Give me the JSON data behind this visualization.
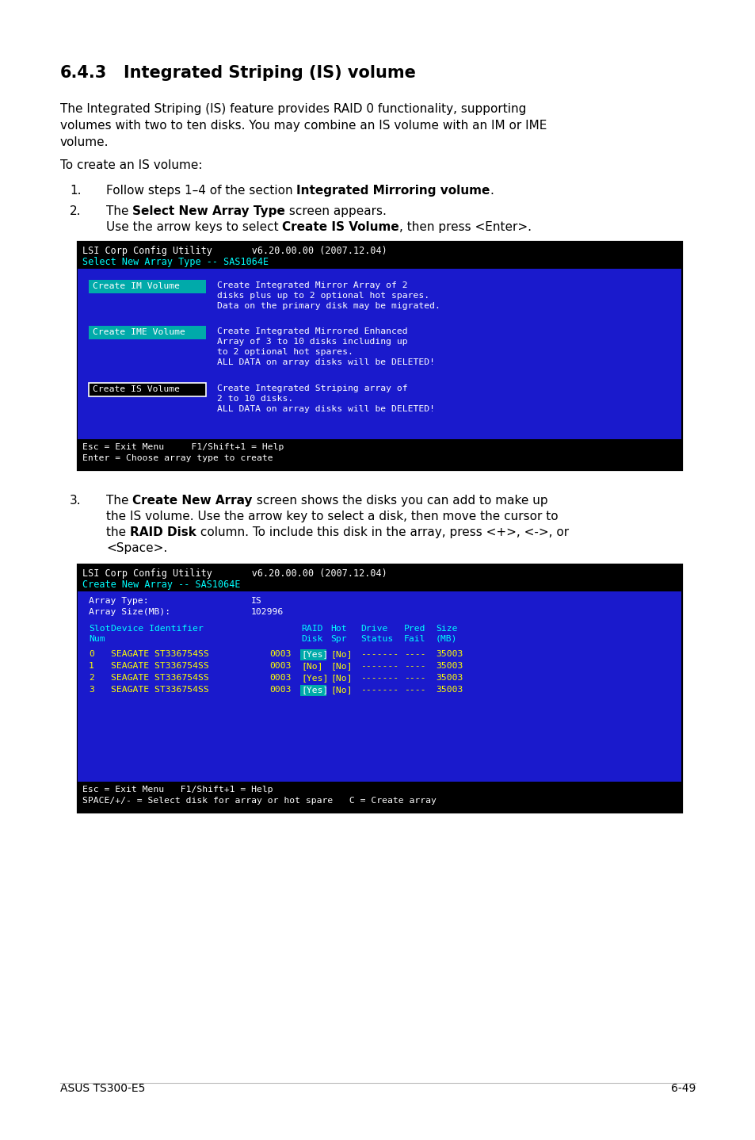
{
  "page_bg": "#ffffff",
  "footer_left": "ASUS TS300-E5",
  "footer_right": "6-49",
  "screen1": {
    "body_bg": "#1a1acc",
    "header_line1": "LSI Corp Config Utility       v6.20.00.00 (2007.12.04)",
    "header_line2": "Select New Array Type -- SAS1064E",
    "header_line2_color": "#00ffff",
    "btn1_text": "Create IM Volume",
    "btn1_desc_lines": [
      "Create Integrated Mirror Array of 2",
      "disks plus up to 2 optional hot spares.",
      "Data on the primary disk may be migrated."
    ],
    "btn2_text": "Create IME Volume",
    "btn2_desc_lines": [
      "Create Integrated Mirrored Enhanced",
      "Array of 3 to 10 disks including up",
      "to 2 optional hot spares.",
      "ALL DATA on array disks will be DELETED!"
    ],
    "btn3_text": "Create IS Volume",
    "btn3_desc_lines": [
      "Create Integrated Striping array of",
      "2 to 10 disks.",
      "ALL DATA on array disks will be DELETED!"
    ],
    "footer_line1": "Esc = Exit Menu     F1/Shift+1 = Help",
    "footer_line2": "Enter = Choose array type to create"
  },
  "screen2": {
    "body_bg": "#1a1acc",
    "header_line1": "LSI Corp Config Utility       v6.20.00.00 (2007.12.04)",
    "header_line2": "Create New Array -- SAS1064E",
    "header_line2_color": "#00ffff",
    "array_type_label": "Array Type:",
    "array_type_value": "IS",
    "array_size_label": "Array Size(MB):",
    "array_size_value": "102996",
    "col_headers_color": "#00ffff",
    "rows": [
      {
        "slot": "0",
        "device": "SEAGATE ST336754SS",
        "num": "0003",
        "raid": "Yes",
        "raid_hl": true,
        "hot": "No",
        "drive": "-------",
        "pred": "----",
        "size": "35003"
      },
      {
        "slot": "1",
        "device": "SEAGATE ST336754SS",
        "num": "0003",
        "raid": "No",
        "raid_hl": false,
        "hot": "No",
        "drive": "-------",
        "pred": "----",
        "size": "35003"
      },
      {
        "slot": "2",
        "device": "SEAGATE ST336754SS",
        "num": "0003",
        "raid": "Yes",
        "raid_hl": false,
        "hot": "No",
        "drive": "-------",
        "pred": "----",
        "size": "35003"
      },
      {
        "slot": "3",
        "device": "SEAGATE ST336754SS",
        "num": "0003",
        "raid": "Yes",
        "raid_hl": true,
        "hot": "No",
        "drive": "-------",
        "pred": "----",
        "size": "35003"
      }
    ],
    "row_color": "#ffff00",
    "footer_line1": "Esc = Exit Menu   F1/Shift+1 = Help",
    "footer_line2": "SPACE/+/- = Select disk for array or hot spare   C = Create array"
  }
}
